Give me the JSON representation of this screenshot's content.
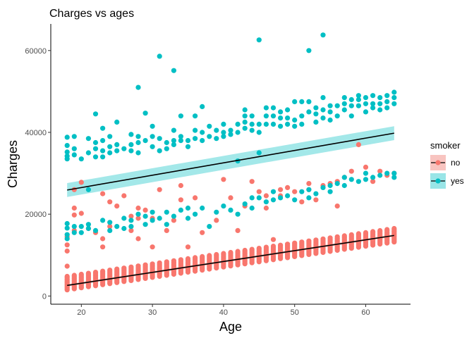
{
  "chart_data": {
    "type": "scatter",
    "title": "Charges vs ages",
    "xlabel": "Age",
    "ylabel": "Charges",
    "xlim": [
      15.7,
      66.3
    ],
    "ylim": [
      -2000,
      66500
    ],
    "x_ticks": [
      20,
      30,
      40,
      50,
      60
    ],
    "y_ticks": [
      0,
      20000,
      40000,
      60000
    ],
    "grid": false,
    "legend": {
      "title": "smoker",
      "position": "right"
    },
    "series": [
      {
        "name": "no",
        "color": "#F8766D",
        "fill_color": "#F8C4C0",
        "trend": {
          "x": [
            18,
            64
          ],
          "y": [
            2600,
            14800
          ]
        },
        "band_halfwidth": 300,
        "main_band": {
          "age_start": 18,
          "age_end": 64,
          "low_start": 1500,
          "low_end": 13200,
          "high_start": 4800,
          "high_end": 16500,
          "count_per_age": 12
        },
        "points": [
          [
            18,
            12500
          ],
          [
            18,
            11000
          ],
          [
            18,
            14500
          ],
          [
            18,
            7300
          ],
          [
            19,
            19800
          ],
          [
            19,
            16000
          ],
          [
            19,
            21500
          ],
          [
            19,
            26000
          ],
          [
            20,
            27800
          ],
          [
            20,
            20200
          ],
          [
            21,
            16500
          ],
          [
            22,
            15500
          ],
          [
            23,
            25000
          ],
          [
            23,
            12000
          ],
          [
            23,
            14000
          ],
          [
            24,
            17000
          ],
          [
            24,
            23000
          ],
          [
            25,
            22000
          ],
          [
            26,
            24500
          ],
          [
            27,
            16000
          ],
          [
            27,
            19500
          ],
          [
            28,
            14000
          ],
          [
            28,
            19000
          ],
          [
            28,
            21500
          ],
          [
            29,
            21000
          ],
          [
            30,
            19000
          ],
          [
            30,
            12000
          ],
          [
            31,
            26000
          ],
          [
            32,
            16000
          ],
          [
            33,
            18500
          ],
          [
            34,
            27000
          ],
          [
            34,
            23500
          ],
          [
            35,
            12000
          ],
          [
            36,
            24000
          ],
          [
            37,
            15500
          ],
          [
            39,
            18500
          ],
          [
            40,
            28500
          ],
          [
            41,
            24000
          ],
          [
            42,
            16000
          ],
          [
            43,
            22000
          ],
          [
            44,
            28000
          ],
          [
            45,
            25500
          ],
          [
            46,
            21500
          ],
          [
            46,
            24500
          ],
          [
            47,
            13800
          ],
          [
            48,
            24500
          ],
          [
            48,
            26000
          ],
          [
            49,
            26500
          ],
          [
            50,
            25500
          ],
          [
            51,
            23000
          ],
          [
            52,
            26000
          ],
          [
            52,
            27500
          ],
          [
            53,
            23500
          ],
          [
            54,
            27000
          ],
          [
            55,
            27500
          ],
          [
            56,
            28000
          ],
          [
            56,
            22000
          ],
          [
            57,
            29000
          ],
          [
            58,
            30500
          ],
          [
            59,
            37000
          ],
          [
            60,
            31500
          ],
          [
            61,
            28000
          ],
          [
            62,
            30500
          ],
          [
            63,
            29500
          ],
          [
            64,
            30000
          ]
        ]
      },
      {
        "name": "yes",
        "color": "#00BFC4",
        "fill_color": "#99E5E7",
        "trend": {
          "x": [
            18,
            64
          ],
          "y": [
            25900,
            39800
          ]
        },
        "band_halfwidth": 1700,
        "points": [
          [
            18,
            38800
          ],
          [
            18,
            36800
          ],
          [
            18,
            35200
          ],
          [
            18,
            34200
          ],
          [
            18,
            33500
          ],
          [
            18,
            17700
          ],
          [
            18,
            16600
          ],
          [
            18,
            15000
          ],
          [
            18,
            14000
          ],
          [
            19,
            39000
          ],
          [
            19,
            36000
          ],
          [
            19,
            34500
          ],
          [
            19,
            17000
          ],
          [
            19,
            15500
          ],
          [
            20,
            33500
          ],
          [
            20,
            17000
          ],
          [
            20,
            15500
          ],
          [
            21,
            38500
          ],
          [
            21,
            35000
          ],
          [
            21,
            26000
          ],
          [
            21,
            17500
          ],
          [
            21,
            16500
          ],
          [
            22,
            44500
          ],
          [
            22,
            37500
          ],
          [
            22,
            36000
          ],
          [
            22,
            34000
          ],
          [
            22,
            16000
          ],
          [
            23,
            41000
          ],
          [
            23,
            38000
          ],
          [
            23,
            35500
          ],
          [
            23,
            34000
          ],
          [
            23,
            18500
          ],
          [
            24,
            39000
          ],
          [
            24,
            36500
          ],
          [
            24,
            35000
          ],
          [
            24,
            18000
          ],
          [
            24,
            16000
          ],
          [
            25,
            42500
          ],
          [
            25,
            37000
          ],
          [
            25,
            35500
          ],
          [
            25,
            17000
          ],
          [
            26,
            36000
          ],
          [
            26,
            19000
          ],
          [
            26,
            16500
          ],
          [
            27,
            39500
          ],
          [
            27,
            37000
          ],
          [
            27,
            35500
          ],
          [
            27,
            18500
          ],
          [
            27,
            17000
          ],
          [
            28,
            51000
          ],
          [
            28,
            39000
          ],
          [
            28,
            37500
          ],
          [
            28,
            35000
          ],
          [
            28,
            20000
          ],
          [
            29,
            44700
          ],
          [
            29,
            38000
          ],
          [
            29,
            19500
          ],
          [
            29,
            17500
          ],
          [
            30,
            41500
          ],
          [
            30,
            39000
          ],
          [
            30,
            36500
          ],
          [
            30,
            20500
          ],
          [
            30,
            18500
          ],
          [
            31,
            58600
          ],
          [
            31,
            38500
          ],
          [
            31,
            35500
          ],
          [
            31,
            19000
          ],
          [
            32,
            37500
          ],
          [
            32,
            36000
          ],
          [
            32,
            20500
          ],
          [
            32,
            17500
          ],
          [
            33,
            55100
          ],
          [
            33,
            40500
          ],
          [
            33,
            38000
          ],
          [
            33,
            37000
          ],
          [
            33,
            19500
          ],
          [
            34,
            44000
          ],
          [
            34,
            39000
          ],
          [
            34,
            38000
          ],
          [
            34,
            21000
          ],
          [
            35,
            38000
          ],
          [
            35,
            36500
          ],
          [
            35,
            21500
          ],
          [
            35,
            19000
          ],
          [
            36,
            44000
          ],
          [
            36,
            40500
          ],
          [
            36,
            38500
          ],
          [
            36,
            20000
          ],
          [
            37,
            46300
          ],
          [
            37,
            40000
          ],
          [
            37,
            38000
          ],
          [
            37,
            21500
          ],
          [
            38,
            41500
          ],
          [
            38,
            39000
          ],
          [
            38,
            17000
          ],
          [
            39,
            40500
          ],
          [
            39,
            38500
          ],
          [
            39,
            20500
          ],
          [
            40,
            42000
          ],
          [
            40,
            40000
          ],
          [
            40,
            39000
          ],
          [
            40,
            22000
          ],
          [
            41,
            40500
          ],
          [
            41,
            39500
          ],
          [
            41,
            21000
          ],
          [
            42,
            42000
          ],
          [
            42,
            40000
          ],
          [
            42,
            33000
          ],
          [
            42,
            20000
          ],
          [
            43,
            45500
          ],
          [
            43,
            44000
          ],
          [
            43,
            42500
          ],
          [
            43,
            41000
          ],
          [
            43,
            22500
          ],
          [
            44,
            44000
          ],
          [
            44,
            42000
          ],
          [
            44,
            40500
          ],
          [
            44,
            24000
          ],
          [
            44,
            21500
          ],
          [
            45,
            62600
          ],
          [
            45,
            42000
          ],
          [
            45,
            40000
          ],
          [
            45,
            35000
          ],
          [
            45,
            24000
          ],
          [
            46,
            46000
          ],
          [
            46,
            44000
          ],
          [
            46,
            42000
          ],
          [
            46,
            23000
          ],
          [
            47,
            46000
          ],
          [
            47,
            44000
          ],
          [
            47,
            42000
          ],
          [
            47,
            25500
          ],
          [
            47,
            23500
          ],
          [
            48,
            45000
          ],
          [
            48,
            43500
          ],
          [
            48,
            41500
          ],
          [
            48,
            24000
          ],
          [
            49,
            45500
          ],
          [
            49,
            43500
          ],
          [
            49,
            42000
          ],
          [
            49,
            24500
          ],
          [
            50,
            47500
          ],
          [
            50,
            43000
          ],
          [
            50,
            41500
          ],
          [
            50,
            23500
          ],
          [
            51,
            47500
          ],
          [
            51,
            44000
          ],
          [
            51,
            42000
          ],
          [
            51,
            25500
          ],
          [
            52,
            60000
          ],
          [
            52,
            47500
          ],
          [
            52,
            45000
          ],
          [
            52,
            26000
          ],
          [
            52,
            24000
          ],
          [
            53,
            46000
          ],
          [
            53,
            44500
          ],
          [
            53,
            42500
          ],
          [
            53,
            25000
          ],
          [
            54,
            63800
          ],
          [
            54,
            48500
          ],
          [
            54,
            45500
          ],
          [
            54,
            43500
          ],
          [
            54,
            26500
          ],
          [
            55,
            46500
          ],
          [
            55,
            45000
          ],
          [
            55,
            43000
          ],
          [
            55,
            27000
          ],
          [
            55,
            25500
          ],
          [
            56,
            46500
          ],
          [
            56,
            44000
          ],
          [
            56,
            27500
          ],
          [
            57,
            48500
          ],
          [
            57,
            47000
          ],
          [
            57,
            45500
          ],
          [
            57,
            29000
          ],
          [
            57,
            27000
          ],
          [
            58,
            48000
          ],
          [
            58,
            46500
          ],
          [
            58,
            44000
          ],
          [
            58,
            28500
          ],
          [
            59,
            49000
          ],
          [
            59,
            48000
          ],
          [
            59,
            46500
          ],
          [
            59,
            28000
          ],
          [
            60,
            48500
          ],
          [
            60,
            47000
          ],
          [
            60,
            45000
          ],
          [
            60,
            30000
          ],
          [
            60,
            28500
          ],
          [
            61,
            49000
          ],
          [
            61,
            47000
          ],
          [
            61,
            46000
          ],
          [
            61,
            29000
          ],
          [
            62,
            48500
          ],
          [
            62,
            47000
          ],
          [
            62,
            45500
          ],
          [
            62,
            29500
          ],
          [
            63,
            49000
          ],
          [
            63,
            47500
          ],
          [
            63,
            46000
          ],
          [
            63,
            30000
          ],
          [
            64,
            49800
          ],
          [
            64,
            48500
          ],
          [
            64,
            47000
          ],
          [
            64,
            30000
          ],
          [
            64,
            29000
          ]
        ]
      }
    ]
  }
}
